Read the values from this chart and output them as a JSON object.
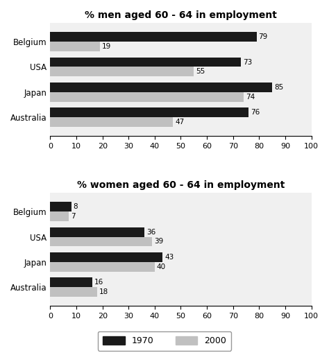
{
  "men_title": "% men aged 60 - 64 in employment",
  "women_title": "% women aged 60 - 64 in employment",
  "countries": [
    "Australia",
    "Japan",
    "USA",
    "Belgium"
  ],
  "men_1970": [
    76,
    85,
    73,
    79
  ],
  "men_2000": [
    47,
    74,
    55,
    19
  ],
  "women_1970": [
    16,
    43,
    36,
    8
  ],
  "women_2000": [
    18,
    40,
    39,
    7
  ],
  "color_1970": "#1a1a1a",
  "color_2000": "#c0c0c0",
  "xlim": [
    0,
    100
  ],
  "xticks": [
    0,
    10,
    20,
    30,
    40,
    50,
    60,
    70,
    80,
    90,
    100
  ],
  "bar_height": 0.38,
  "label_1970": "1970",
  "label_2000": "2000",
  "bg_color": "#f0f0f0",
  "title_fontsize": 10,
  "tick_fontsize": 8,
  "label_fontsize": 8.5,
  "annotation_fontsize": 7.5
}
